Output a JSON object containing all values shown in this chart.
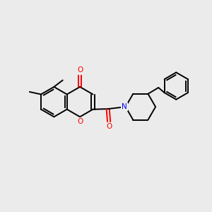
{
  "bg_color": "#ebebeb",
  "bond_color": "#000000",
  "oxygen_color": "#ff0000",
  "nitrogen_color": "#0000ff",
  "lw": 1.4,
  "fig_size": [
    3.0,
    3.0
  ],
  "dpi": 100,
  "xlim": [
    0,
    10
  ],
  "ylim": [
    0,
    10
  ]
}
